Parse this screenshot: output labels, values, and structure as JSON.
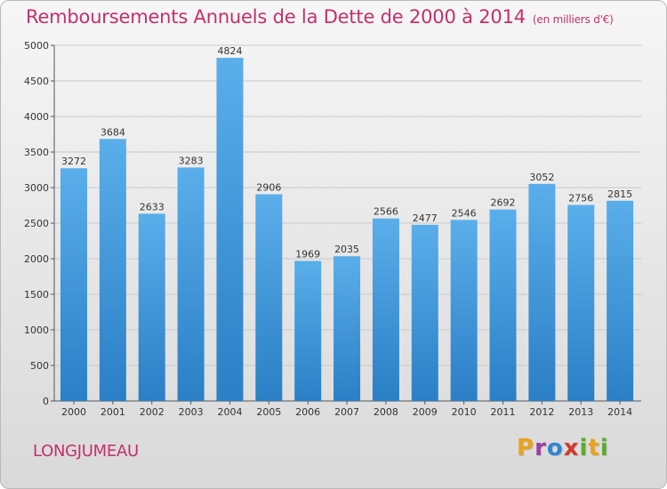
{
  "title": "Remboursements Annuels de la Dette de 2000 à 2014",
  "subtitle": "(en milliers d'€)",
  "city": "LONGJUMEAU",
  "logo": {
    "letters": [
      "P",
      "r",
      "o",
      "x",
      "i",
      "t",
      "i"
    ]
  },
  "colors": {
    "title": "#c4306a",
    "bar_top": "#5aaeea",
    "bar_bottom": "#2a7fc6",
    "logo": [
      "#e8a21c",
      "#9b3fa0",
      "#2f86d1",
      "#d03a2f",
      "#5bab2e",
      "#e8a21c",
      "#5bab2e"
    ]
  },
  "chart_data": {
    "type": "bar",
    "title": "Remboursements Annuels de la Dette de 2000 à 2014",
    "subtitle": "(en milliers d'€)",
    "xlabel": "",
    "ylabel": "",
    "ylim": [
      0,
      5000
    ],
    "yticks": [
      0,
      500,
      1000,
      1500,
      2000,
      2500,
      3000,
      3500,
      4000,
      4500,
      5000
    ],
    "grid": true,
    "categories": [
      "2000",
      "2001",
      "2002",
      "2003",
      "2004",
      "2005",
      "2006",
      "2007",
      "2008",
      "2009",
      "2010",
      "2011",
      "2012",
      "2013",
      "2014"
    ],
    "values": [
      3272,
      3684,
      2633,
      3283,
      4824,
      2906,
      1969,
      2035,
      2566,
      2477,
      2546,
      2692,
      3052,
      2756,
      2815
    ]
  }
}
